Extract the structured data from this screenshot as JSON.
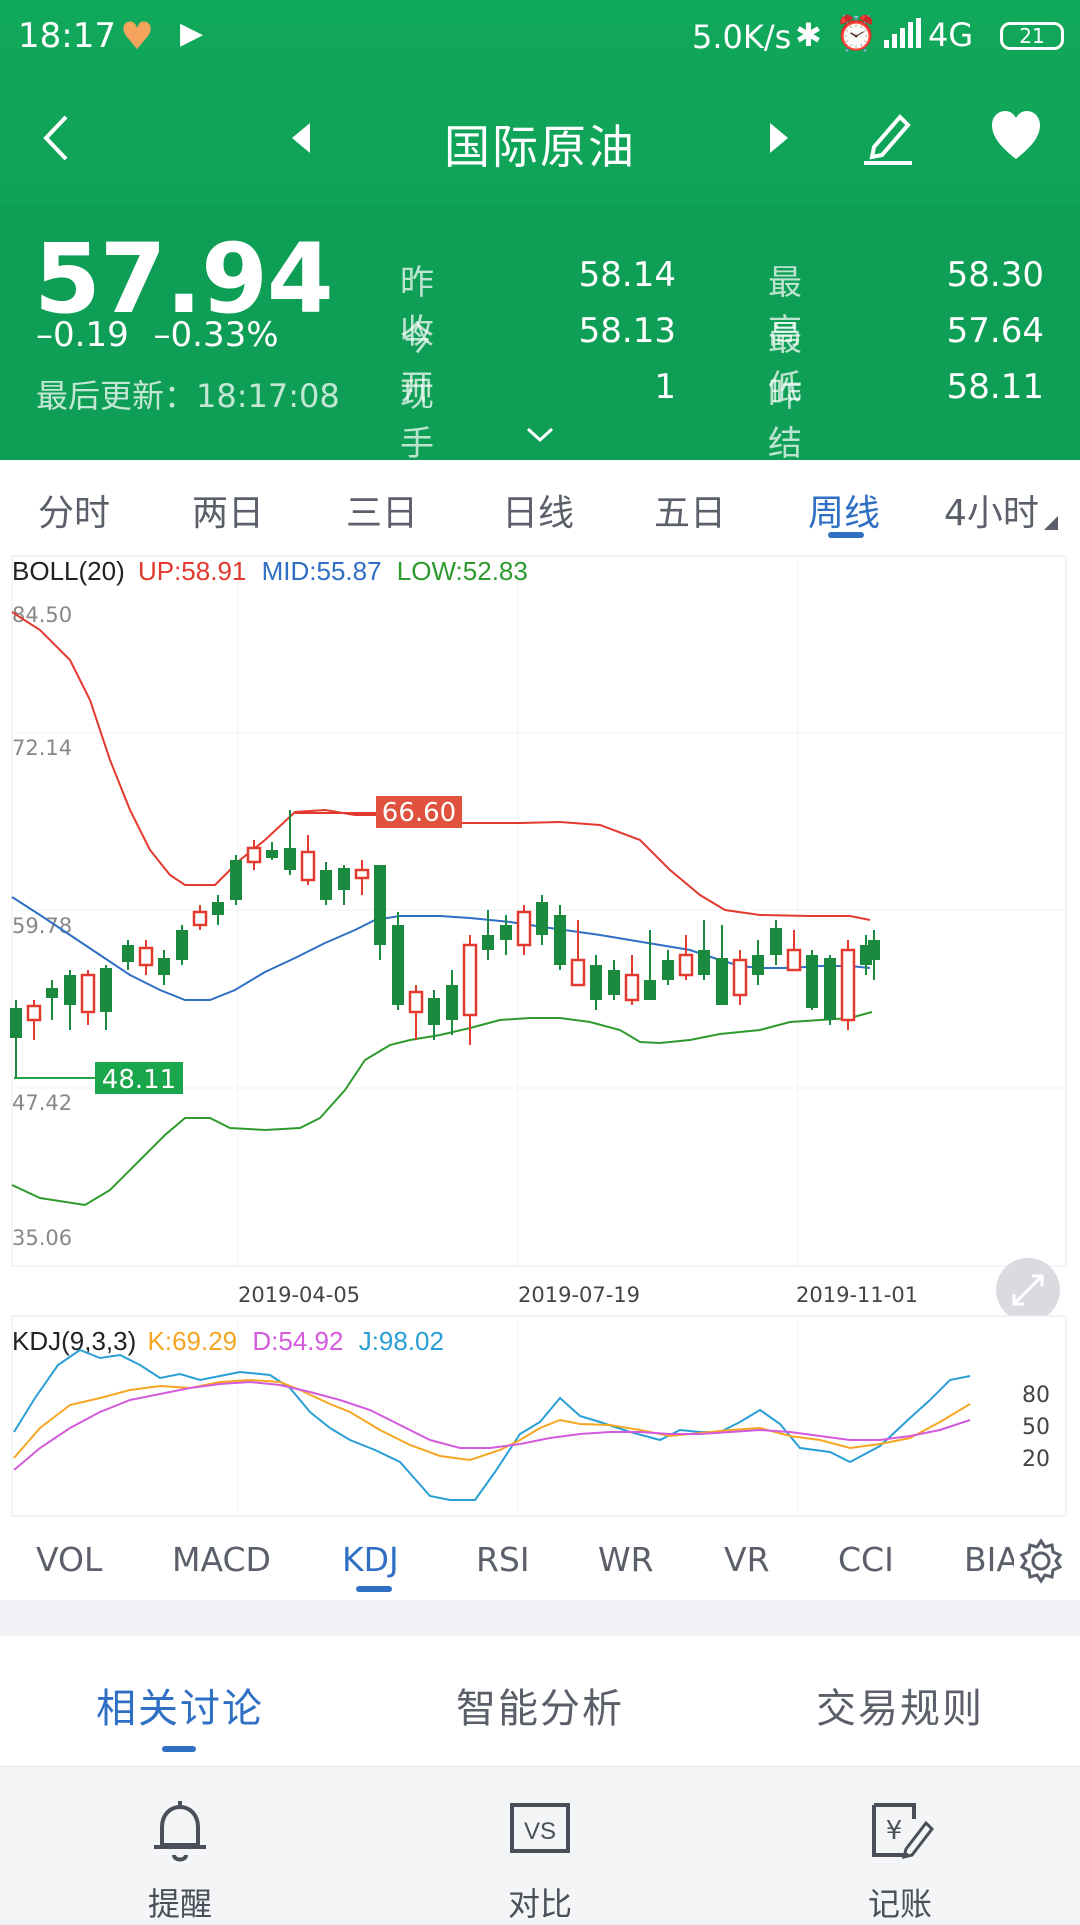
{
  "status_bar": {
    "time": "18:17",
    "net_speed": "5.0K/s",
    "network": "4G",
    "battery": "21",
    "icons": [
      "heart-rate-icon",
      "play-icon",
      "bluetooth-icon",
      "alarm-icon",
      "signal-icon"
    ]
  },
  "nav": {
    "title": "国际原油"
  },
  "quote": {
    "price": "57.94",
    "change": "–0.19",
    "change_pct": "–0.33%",
    "updated": "最后更新：18:17:08",
    "stats": [
      {
        "label": "昨收",
        "value": "58.14"
      },
      {
        "label": "今开",
        "value": "58.13"
      },
      {
        "label": "现手",
        "value": "1"
      },
      {
        "label": "最高",
        "value": "58.30"
      },
      {
        "label": "最低",
        "value": "57.64"
      },
      {
        "label": "昨结",
        "value": "58.11"
      }
    ]
  },
  "period_tabs": [
    "分时",
    "两日",
    "三日",
    "日线",
    "五日",
    "周线",
    "4小时"
  ],
  "active_period": "周线",
  "boll": {
    "name": "BOLL(20)",
    "up": "UP:58.91",
    "mid": "MID:55.87",
    "low": "LOW:52.83"
  },
  "kdj": {
    "name": "KDJ(9,3,3)",
    "k": "K:69.29",
    "d": "D:54.92",
    "j": "J:98.02"
  },
  "chart_data": {
    "type": "candlestick",
    "price_axis": [
      "84.50",
      "72.14",
      "59.78",
      "47.42",
      "35.06"
    ],
    "dates": [
      "2019-04-05",
      "2019-07-19",
      "2019-11-01"
    ],
    "max_marker": "66.60",
    "min_marker": "48.11",
    "kdj_axis": [
      "80",
      "50",
      "20"
    ]
  },
  "indicator_tabs": [
    "VOL",
    "MACD",
    "KDJ",
    "RSI",
    "WR",
    "VR",
    "CCI",
    "BIAS"
  ],
  "active_indicator": "KDJ",
  "section_tabs": [
    "相关讨论",
    "智能分析",
    "交易规则"
  ],
  "bottom_bar": [
    {
      "label": "提醒",
      "icon": "bell-icon"
    },
    {
      "label": "对比",
      "icon": "compare-icon"
    },
    {
      "label": "记账",
      "icon": "ledger-icon"
    }
  ],
  "colors": {
    "green": "#0f9e56",
    "up": "#e23a2e",
    "down": "#1a8a3f",
    "accent": "#2f6fc4"
  }
}
